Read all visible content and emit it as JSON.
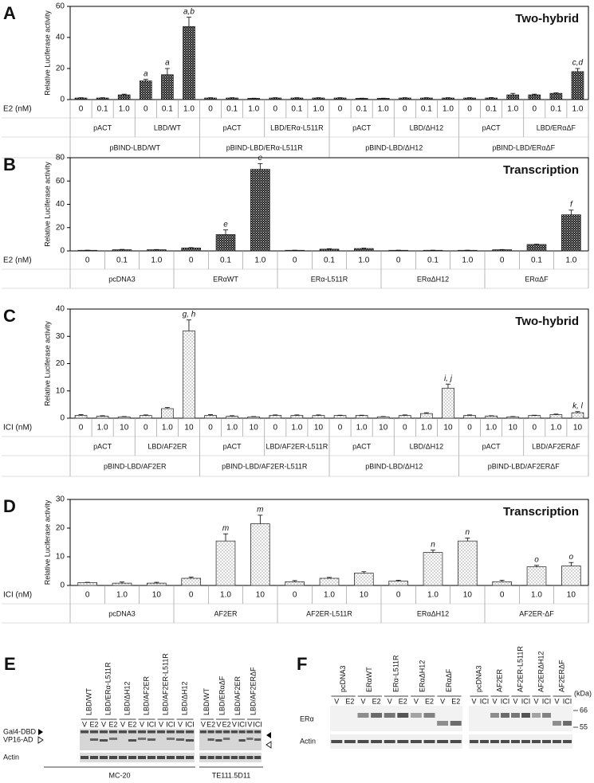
{
  "chart_data": [
    {
      "type": "bar",
      "panel": "A",
      "title": "Two-hybrid",
      "y_label": "Relative Luciferase activity",
      "x_label": "E2 (nM)",
      "categories": [
        "0",
        "0.1",
        "1.0",
        "0",
        "0.1",
        "1.0",
        "0",
        "0.1",
        "1.0",
        "0",
        "0.1",
        "1.0",
        "0",
        "0.1",
        "1.0",
        "0",
        "0.1",
        "1.0",
        "0",
        "0.1",
        "1.0",
        "0",
        "0.1",
        "1.0"
      ],
      "groups": [
        "pACT",
        "LBD/WT",
        "pACT",
        "LBD/ERα-L511R",
        "pACT",
        "LBD/ΔH12",
        "pACT",
        "LBD/ERαΔF"
      ],
      "supergroups": [
        "pBIND-LBD/WT",
        "pBIND-LBD/ERα-L511R",
        "pBIND-LBD/ΔH12",
        "pBIND-LBD/ERαΔF"
      ],
      "values": [
        1,
        1,
        3,
        12,
        16,
        47,
        1,
        1,
        0.8,
        1,
        1,
        1,
        1,
        0.8,
        0.8,
        1,
        1,
        1,
        1,
        1,
        3,
        3,
        4,
        18
      ],
      "errors": [
        0.2,
        0.2,
        0.5,
        1,
        4,
        6,
        0.2,
        0.2,
        0.1,
        0.2,
        0.2,
        0.2,
        0.2,
        0.1,
        0.1,
        0.2,
        0.2,
        0.2,
        0.2,
        0.3,
        1,
        0.5,
        0.3,
        2
      ],
      "annotations": [
        null,
        null,
        null,
        "a",
        "a",
        "a,b",
        null,
        null,
        null,
        null,
        null,
        null,
        null,
        null,
        null,
        null,
        null,
        null,
        null,
        null,
        null,
        null,
        null,
        "c,d"
      ],
      "color": "#222222",
      "pattern": "checker",
      "ylim": [
        0,
        60
      ],
      "yticks": [
        0,
        20,
        40,
        60
      ]
    },
    {
      "type": "bar",
      "panel": "B",
      "title": "Transcription",
      "y_label": "Relative Luciferase activity",
      "x_label": "E2 (nM)",
      "categories": [
        "0",
        "0.1",
        "1.0",
        "0",
        "0.1",
        "1.0",
        "0",
        "0.1",
        "1.0",
        "0",
        "0.1",
        "1.0",
        "0",
        "0.1",
        "1.0"
      ],
      "groups": [
        "pcDNA3",
        "ERαWT",
        "ERα-L511R",
        "ERαΔH12",
        "ERαΔF"
      ],
      "values": [
        0.5,
        1,
        1,
        2.5,
        14,
        70,
        0.5,
        1.5,
        2,
        0.5,
        0.5,
        0.5,
        1,
        5.5,
        31
      ],
      "errors": [
        0.1,
        0.3,
        0.2,
        0.3,
        4,
        5,
        0.1,
        0.4,
        0.4,
        0.1,
        0.1,
        0.1,
        0.2,
        0.3,
        4
      ],
      "annotations": [
        null,
        null,
        null,
        null,
        "e",
        "e",
        null,
        null,
        null,
        null,
        null,
        null,
        null,
        null,
        "f"
      ],
      "color": "#222222",
      "pattern": "checker",
      "ylim": [
        0,
        80
      ],
      "yticks": [
        0,
        20,
        40,
        60,
        80
      ]
    },
    {
      "type": "bar",
      "panel": "C",
      "title": "Two-hybrid",
      "y_label": "Relative Luciferase activity",
      "x_label": "ICI (nM)",
      "categories": [
        "0",
        "1.0",
        "10",
        "0",
        "1.0",
        "10",
        "0",
        "1.0",
        "10",
        "0",
        "1.0",
        "10",
        "0",
        "1.0",
        "10",
        "0",
        "1.0",
        "10",
        "0",
        "1.0",
        "10",
        "0",
        "1.0",
        "10"
      ],
      "groups": [
        "pACT",
        "LBD/AF2ER",
        "pACT",
        "LBD/AF2ER-L511R",
        "pACT",
        "LBD/ΔH12",
        "pACT",
        "LBD/AF2ERΔF"
      ],
      "supergroups": [
        "pBIND-LBD/AF2ER",
        "pBIND-LBD/AF2ER-L511R",
        "pBIND-LBD/ΔH12",
        "pBIND-LBD/AF2ERΔF"
      ],
      "values": [
        1,
        0.7,
        0.5,
        1,
        3.5,
        32,
        1,
        0.7,
        0.5,
        1,
        1,
        1,
        1,
        1,
        0.5,
        1,
        1.7,
        11,
        1,
        0.8,
        0.5,
        1,
        1.3,
        2
      ],
      "errors": [
        0.3,
        0.2,
        0.1,
        0.2,
        0.4,
        4,
        0.3,
        0.2,
        0.1,
        0.2,
        0.2,
        0.2,
        0.1,
        0.1,
        0.1,
        0.2,
        0.3,
        1.5,
        0.2,
        0.1,
        0.1,
        0.1,
        0.2,
        0.4
      ],
      "annotations": [
        null,
        null,
        null,
        null,
        null,
        "g, h",
        null,
        null,
        null,
        null,
        null,
        null,
        null,
        null,
        null,
        null,
        null,
        "i, j",
        null,
        null,
        null,
        null,
        null,
        "k, l"
      ],
      "color": "#333333",
      "pattern": "dots",
      "ylim": [
        0,
        40
      ],
      "yticks": [
        0,
        10,
        20,
        30,
        40
      ]
    },
    {
      "type": "bar",
      "panel": "D",
      "title": "Transcription",
      "y_label": "Relative Luciferase activity",
      "x_label": "ICI (nM)",
      "categories": [
        "0",
        "1.0",
        "10",
        "0",
        "1.0",
        "10",
        "0",
        "1.0",
        "10",
        "0",
        "1.0",
        "10",
        "0",
        "1.0",
        "10"
      ],
      "groups": [
        "pcDNA3",
        "AF2ER",
        "AF2ER-L511R",
        "ERαΔH12",
        "AF2ER-ΔF"
      ],
      "values": [
        1,
        0.8,
        0.8,
        2.5,
        15.5,
        21.5,
        1.3,
        2.5,
        4.3,
        1.5,
        11.5,
        15.5,
        1.3,
        6.5,
        6.8
      ],
      "errors": [
        0.1,
        0.4,
        0.3,
        0.4,
        2.5,
        3,
        0.4,
        0.3,
        0.5,
        0.3,
        0.8,
        1,
        0.5,
        0.5,
        1.2
      ],
      "annotations": [
        null,
        null,
        null,
        null,
        "m",
        "m",
        null,
        null,
        null,
        null,
        "n",
        "n",
        null,
        "o",
        "o"
      ],
      "color": "#333333",
      "pattern": "dots",
      "ylim": [
        0,
        30
      ],
      "yticks": [
        0,
        10,
        20,
        30
      ]
    }
  ],
  "blots": [
    {
      "panel": "E",
      "lanes": [
        "LBD/WT",
        "LBD/ERα-L511R",
        "LBD/ΔH12",
        "LBD/AF2ER",
        "LBD/AF2ER-L511R",
        "LBD/ΔH12",
        "LBD/WT",
        "LBD/ERαΔF",
        "LBD/AF2ER",
        "LBD/AF2ERΔF"
      ],
      "treatments": [
        "V",
        "E2",
        "V",
        "E2",
        "V",
        "E2",
        "V",
        "ICI",
        "V",
        "ICI",
        "V",
        "ICI",
        "V",
        "E2",
        "V",
        "E2",
        "V",
        "ICI",
        "V",
        "ICI"
      ],
      "row_labels": [
        "Gal4-DBD",
        "VP16-AD"
      ],
      "loading": "Actin",
      "antibodies": [
        "MC-20",
        "TE111.5D11"
      ]
    },
    {
      "panel": "F",
      "lanes": [
        "pcDNA3",
        "ERαWT",
        "ERα-L511R",
        "ERαΔH12",
        "ERαΔF",
        "pcDNA3",
        "AF2ER",
        "AF2ER-L511R",
        "AF2ERΔH12",
        "AF2ERΔF"
      ],
      "treatments": [
        "V",
        "E2",
        "V",
        "E2",
        "V",
        "E2",
        "V",
        "E2",
        "V",
        "E2",
        "V",
        "ICI",
        "V",
        "ICI",
        "V",
        "ICI",
        "V",
        "ICI",
        "V",
        "ICI"
      ],
      "row_labels": [
        "ERα"
      ],
      "loading": "Actin",
      "unit": "(kDa)",
      "sizes": [
        66,
        55
      ]
    }
  ]
}
